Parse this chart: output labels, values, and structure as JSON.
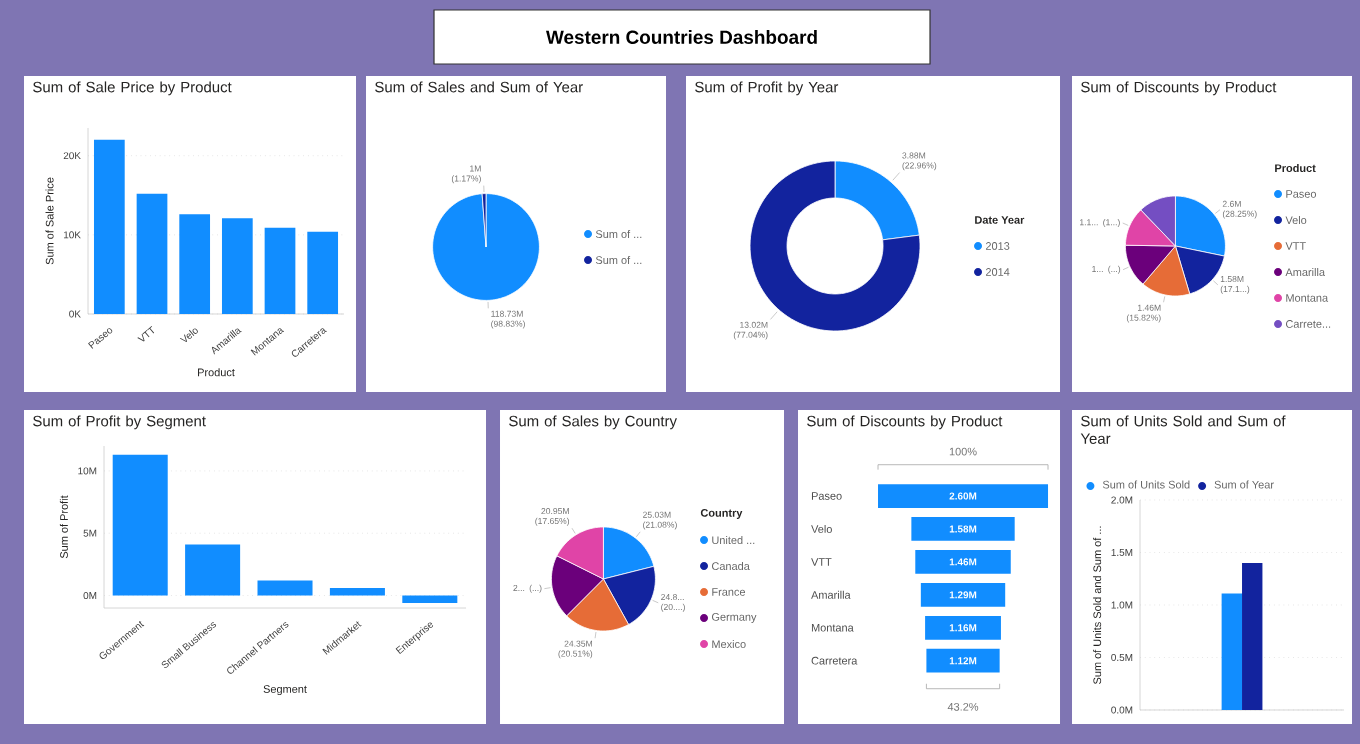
{
  "chart_data": [
    {
      "type": "other",
      "title": "Western Countries Dashboard"
    },
    {
      "type": "bar",
      "title": "Sum of Sale Price by Product",
      "xlabel": "Product",
      "ylabel": "Sum of Sale Price",
      "categories": [
        "Paseo",
        "VTT",
        "Velo",
        "Amarilla",
        "Montana",
        "Carretera"
      ],
      "values": [
        22000,
        15200,
        12600,
        12100,
        10900,
        10400
      ],
      "color": "#118dff",
      "ylim": [
        0,
        23500
      ],
      "yticks": [
        {
          "value": 0,
          "label": "0K"
        },
        {
          "value": 10000,
          "label": "10K"
        },
        {
          "value": 20000,
          "label": "20K"
        }
      ],
      "grid": "y"
    },
    {
      "type": "pie",
      "title": "Sum of Sales and Sum of Year",
      "categories": [
        "Sum of ...",
        "Sum of ..."
      ],
      "values": [
        118730000,
        1400000
      ],
      "value_labels": [
        "118.73M (98.83%)",
        "1M (1.17%)"
      ],
      "colors": [
        "#118dff",
        "#12239e"
      ],
      "legend": "right"
    },
    {
      "type": "donut",
      "title": "Sum of Profit by Year",
      "legend_title": "Date Year",
      "categories": [
        "2013",
        "2014"
      ],
      "values": [
        3880000,
        13020000
      ],
      "value_labels": [
        "3.88M (22.96%)",
        "13.02M (77.04%)"
      ],
      "colors": [
        "#118dff",
        "#12239e"
      ],
      "legend": "right"
    },
    {
      "type": "pie",
      "title": "Sum of Discounts by Product",
      "legend_title": "Product",
      "categories": [
        "Paseo",
        "Velo",
        "VTT",
        "Amarilla",
        "Montana",
        "Carrete..."
      ],
      "values": [
        2600000,
        1580000,
        1460000,
        1290000,
        1160000,
        1120000
      ],
      "value_labels": [
        "2.6M (28.25%)",
        "1.58M (17.1...)",
        "1.46M (15.82%)",
        null,
        null,
        null
      ],
      "annotations": [
        "1... (...)",
        "1.1... (1...)"
      ],
      "colors": [
        "#118dff",
        "#12239e",
        "#e66c37",
        "#6b007b",
        "#e044a7",
        "#744ec2"
      ],
      "legend": "right"
    },
    {
      "type": "bar",
      "title": "Sum of Profit by Segment",
      "xlabel": "Segment",
      "ylabel": "Sum of Profit",
      "categories": [
        "Government",
        "Small Business",
        "Channel Partners",
        "Midmarket",
        "Enterprise"
      ],
      "values": [
        11300000,
        4100000,
        1200000,
        600000,
        -600000
      ],
      "color": "#118dff",
      "ylim": [
        -1000000,
        12000000
      ],
      "yticks": [
        {
          "value": 0,
          "label": "0M"
        },
        {
          "value": 5000000,
          "label": "5M"
        },
        {
          "value": 10000000,
          "label": "10M"
        }
      ],
      "grid": "y"
    },
    {
      "type": "pie",
      "title": "Sum of Sales by Country",
      "legend_title": "Country",
      "categories": [
        "United ...",
        "Canada",
        "France",
        "Germany",
        "Mexico"
      ],
      "values": [
        25030000,
        24800000,
        24350000,
        23610000,
        20950000
      ],
      "value_labels": [
        "25.03M (21.08%)",
        null,
        "24.35M (20.51%)",
        null,
        "20.95M (17.65%)"
      ],
      "annotations": [
        "24.8... (20....)",
        "2... (...)"
      ],
      "colors": [
        "#118dff",
        "#12239e",
        "#e66c37",
        "#6b007b",
        "#e044a7"
      ],
      "legend": "right"
    },
    {
      "type": "other",
      "title": "Sum of Discounts by Product",
      "categories": [
        "Paseo",
        "Velo",
        "VTT",
        "Amarilla",
        "Montana",
        "Carretera"
      ],
      "values": [
        2600000,
        1580000,
        1460000,
        1290000,
        1160000,
        1120000
      ],
      "value_labels": [
        "2.60M",
        "1.58M",
        "1.46M",
        "1.29M",
        "1.16M",
        "1.12M"
      ],
      "color": "#118dff",
      "annotations": [
        "100%",
        "43.2%"
      ]
    },
    {
      "type": "bar",
      "title": "Sum of Units Sold and Sum of Year",
      "ylabel": "Sum of Units Sold and Sum of ...",
      "categories": [
        null
      ],
      "series": [
        {
          "name": "Sum of Units Sold",
          "color": "#118dff",
          "values": [
            1110000
          ]
        },
        {
          "name": "Sum of Year",
          "color": "#12239e",
          "values": [
            1400000
          ]
        }
      ],
      "ylim": [
        0,
        2000000
      ],
      "yticks": [
        {
          "value": 0,
          "label": "0.0M"
        },
        {
          "value": 500000,
          "label": "0.5M"
        },
        {
          "value": 1000000,
          "label": "1.0M"
        },
        {
          "value": 1500000,
          "label": "1.5M"
        },
        {
          "value": 2000000,
          "label": "2.0M"
        }
      ],
      "grid": "y",
      "legend": "top left"
    }
  ]
}
